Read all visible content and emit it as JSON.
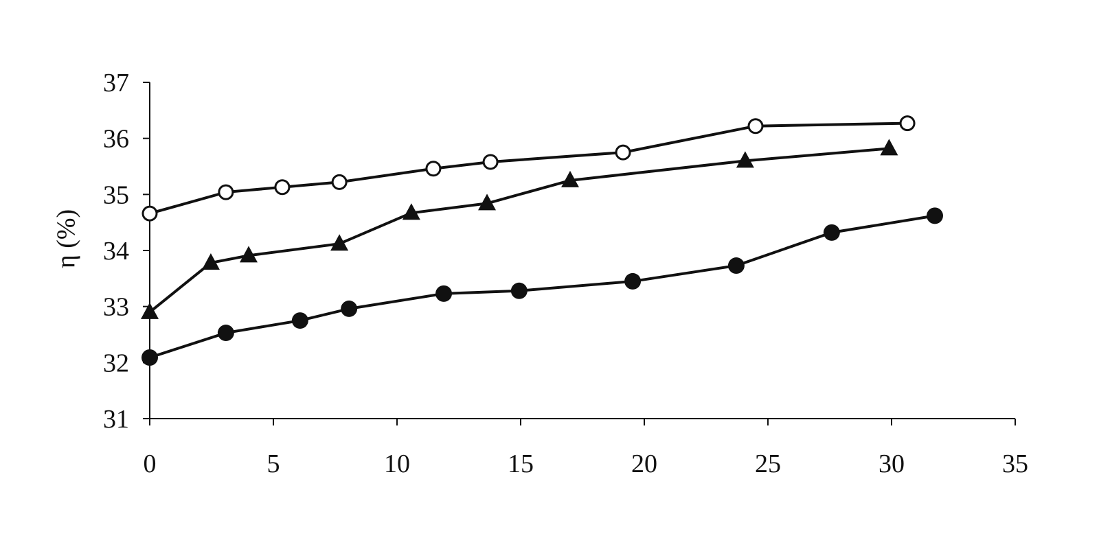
{
  "chart_data": {
    "type": "line",
    "y_label": "η (%)",
    "xlim": [
      0,
      35
    ],
    "xticks": [
      0,
      5,
      10,
      15,
      20,
      25,
      30,
      35
    ],
    "ylim": [
      31,
      37
    ],
    "yticks": [
      31,
      32,
      33,
      34,
      35,
      36,
      37
    ],
    "series": [
      {
        "color": "#111111",
        "marker": "open-circle",
        "x": [
          0,
          3.08,
          5.36,
          7.67,
          11.47,
          13.78,
          19.14,
          24.5,
          30.64
        ],
        "values": [
          34.66,
          35.04,
          35.13,
          35.22,
          35.46,
          35.58,
          35.75,
          36.22,
          36.27
        ]
      },
      {
        "color": "#111111",
        "marker": "triangle",
        "x": [
          0,
          2.47,
          4.0,
          7.67,
          10.58,
          13.64,
          17.0,
          24.08,
          29.9
        ],
        "values": [
          32.9,
          33.78,
          33.91,
          34.12,
          34.67,
          34.84,
          35.25,
          35.6,
          35.82
        ]
      },
      {
        "color": "#111111",
        "marker": "filled-circle",
        "x": [
          0,
          3.08,
          6.08,
          8.06,
          11.89,
          14.94,
          19.53,
          23.72,
          27.58,
          31.75
        ],
        "values": [
          32.09,
          32.53,
          32.75,
          32.96,
          33.23,
          33.28,
          33.45,
          33.73,
          34.32,
          34.62
        ]
      }
    ]
  }
}
